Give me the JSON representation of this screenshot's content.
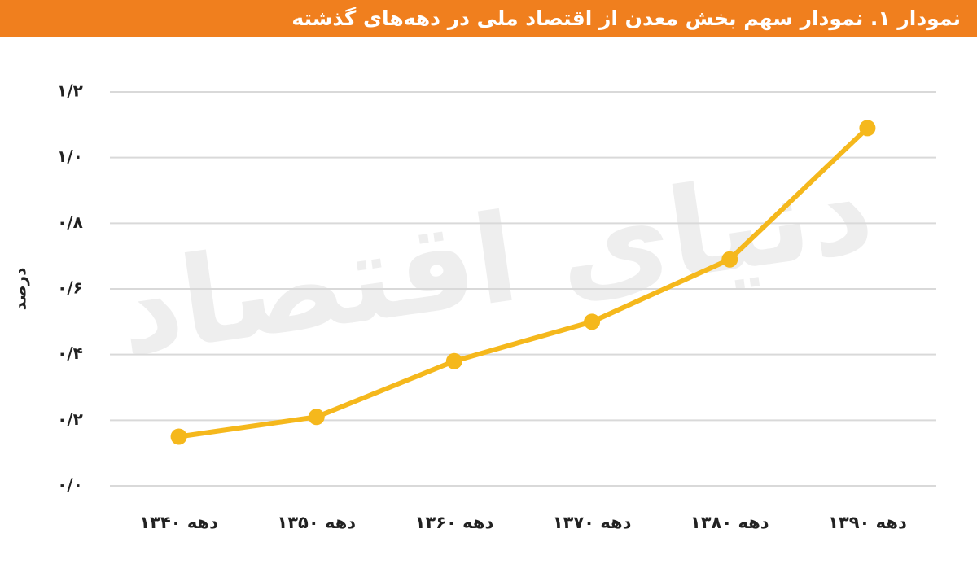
{
  "chart_data": {
    "type": "line",
    "title": "نمودار ۱. نمودار سهم بخش معدن از اقتصاد ملی در دهه‌های گذشته",
    "y_label": "درصد",
    "watermark": "دنیای اقتصاد",
    "categories": [
      "دهه ۱۳۴۰",
      "دهه ۱۳۵۰",
      "دهه ۱۳۶۰",
      "دهه ۱۳۷۰",
      "دهه ۱۳۸۰",
      "دهه ۱۳۹۰"
    ],
    "values": [
      0.15,
      0.21,
      0.38,
      0.5,
      0.69,
      1.09
    ],
    "color": "#f5b81c",
    "ylim": [
      0,
      1.2
    ],
    "yticks": [
      {
        "value": 0,
        "label": "۰/۰"
      },
      {
        "value": 0.2,
        "label": "۰/۲"
      },
      {
        "value": 0.4,
        "label": "۰/۴"
      },
      {
        "value": 0.6,
        "label": "۰/۶"
      },
      {
        "value": 0.8,
        "label": "۰/۸"
      },
      {
        "value": 1.0,
        "label": "۱/۰"
      },
      {
        "value": 1.2,
        "label": "۱/۲"
      }
    ],
    "grid": true
  }
}
